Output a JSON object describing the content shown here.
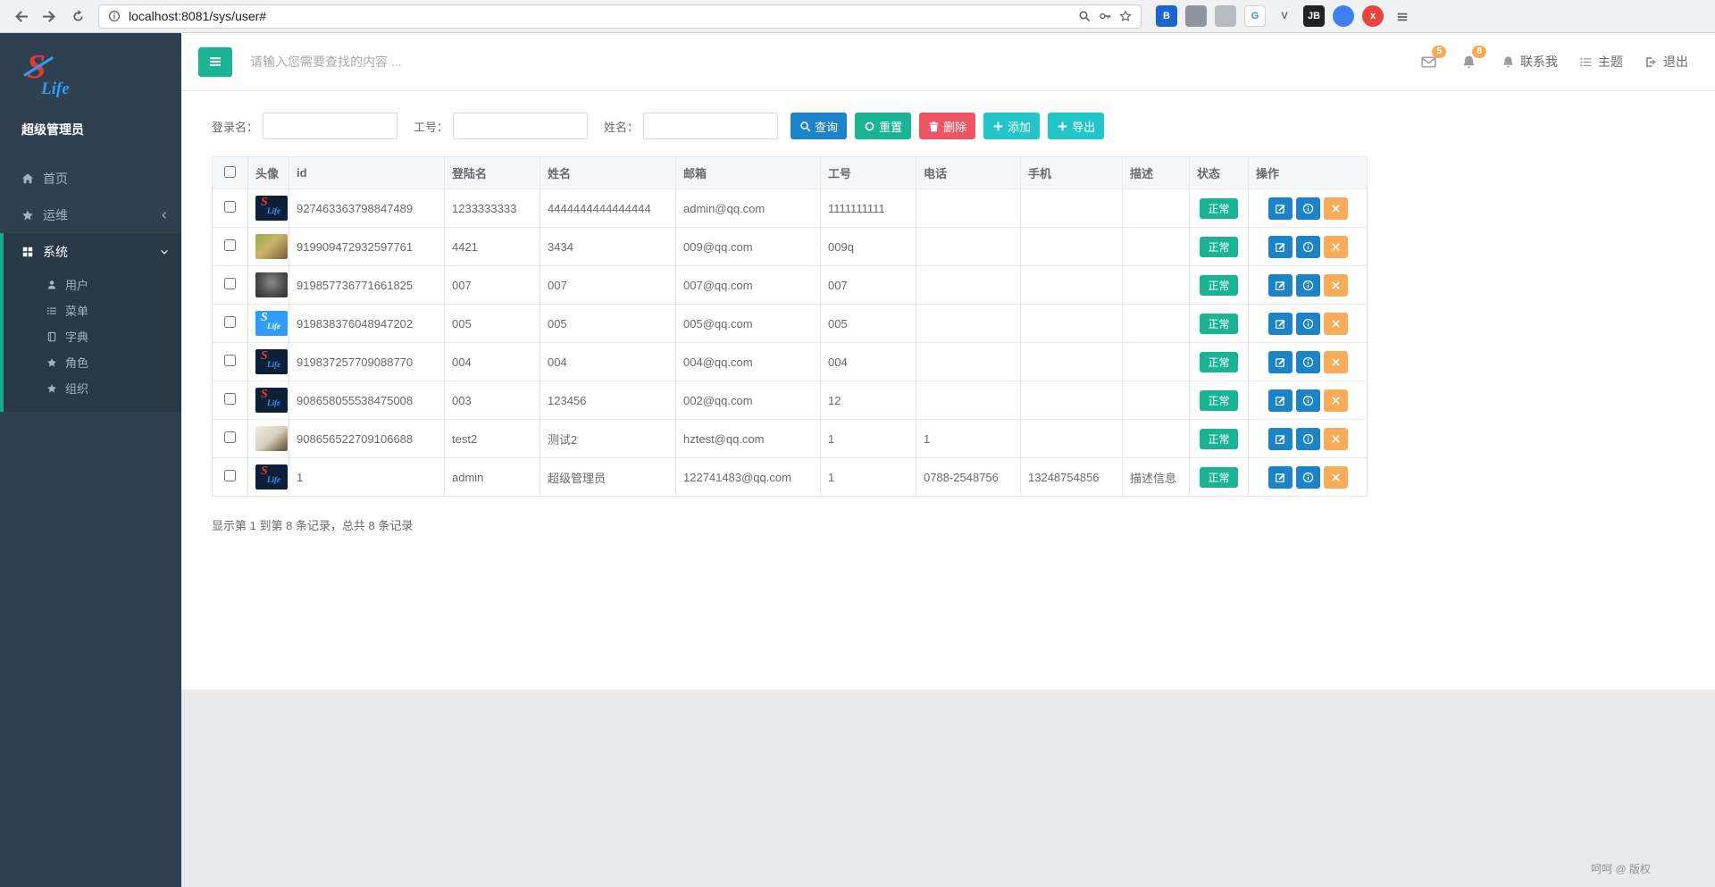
{
  "browser": {
    "url": "localhost:8081/sys/user#",
    "extensions": [
      {
        "key": "bitwarden",
        "label": "B",
        "bg": "#1c64d1",
        "fg": "#ffffff"
      },
      {
        "key": "gray-app",
        "label": "",
        "bg": "#8f959c",
        "fg": "#ffffff"
      },
      {
        "key": "grid",
        "label": "",
        "bg": "#b6bbc1",
        "fg": "#ffffff"
      },
      {
        "key": "translate",
        "label": "G",
        "bg": "#ffffff",
        "fg": "#4285f4",
        "border": true
      },
      {
        "key": "v",
        "label": "V",
        "bg": "#f0f1f3",
        "fg": "#5f6368"
      },
      {
        "key": "jetbrains",
        "label": "JB",
        "bg": "#202225",
        "fg": "#ffffff"
      },
      {
        "key": "blue-dot",
        "label": "",
        "bg": "#3d7ff5",
        "fg": "#ffffff",
        "round": true
      },
      {
        "key": "red-x",
        "label": "x",
        "bg": "#e8453c",
        "fg": "#ffffff",
        "round": true
      }
    ]
  },
  "sidebar": {
    "logo": {
      "s": "S",
      "life": "Life"
    },
    "role": "超级管理员",
    "items": [
      {
        "key": "home",
        "label": "首页",
        "icon": "home"
      },
      {
        "key": "ops",
        "label": "运维",
        "icon": "star",
        "chevron": "left"
      },
      {
        "key": "system",
        "label": "系统",
        "icon": "grid",
        "chevron": "down",
        "active": true
      }
    ],
    "subitems": [
      {
        "key": "user",
        "label": "用户",
        "icon": "user"
      },
      {
        "key": "menu",
        "label": "菜单",
        "icon": "list"
      },
      {
        "key": "dict",
        "label": "字典",
        "icon": "book"
      },
      {
        "key": "role",
        "label": "角色",
        "icon": "star"
      },
      {
        "key": "org",
        "label": "组织",
        "icon": "star"
      }
    ]
  },
  "topbar": {
    "search_placeholder": "请输入您需要查找的内容 ...",
    "messages_badge": "5",
    "alerts_badge": "8",
    "links": [
      {
        "key": "contact",
        "label": "联系我",
        "icon": "bell"
      },
      {
        "key": "theme",
        "label": "主题",
        "icon": "list"
      },
      {
        "key": "logout",
        "label": "退出",
        "icon": "signout"
      }
    ]
  },
  "filters": {
    "fields": [
      {
        "label": "登录名：",
        "value": ""
      },
      {
        "label": "工号：",
        "value": ""
      },
      {
        "label": "姓名：",
        "value": ""
      }
    ],
    "buttons": [
      {
        "key": "query",
        "label": "查询",
        "icon": "search",
        "color": "#1c84c6"
      },
      {
        "key": "reset",
        "label": "重置",
        "icon": "reset",
        "color": "#1ab394"
      },
      {
        "key": "delete",
        "label": "删除",
        "icon": "trash",
        "color": "#ed5565"
      },
      {
        "key": "add",
        "label": "添加",
        "icon": "plus",
        "color": "#23c6c8"
      },
      {
        "key": "export",
        "label": "导出",
        "icon": "plus",
        "color": "#23c6c8"
      }
    ]
  },
  "table": {
    "columns": [
      "头像",
      "id",
      "登陆名",
      "姓名",
      "邮箱",
      "工号",
      "电话",
      "手机",
      "描述",
      "状态",
      "操作"
    ],
    "rows": [
      {
        "avatar": "logo-dark",
        "id": "927463363798847489",
        "login": "1233333333",
        "name": "4444444444444444",
        "email": "admin@qq.com",
        "job_no": "1111111111",
        "phone": "",
        "mobile": "",
        "desc": "",
        "status": "正常"
      },
      {
        "avatar": "game",
        "id": "919909472932597761",
        "login": "4421",
        "name": "3434",
        "email": "009@qq.com",
        "job_no": "009q",
        "phone": "",
        "mobile": "",
        "desc": "",
        "status": "正常"
      },
      {
        "avatar": "cat-dark",
        "id": "919857736771661825",
        "login": "007",
        "name": "007",
        "email": "007@qq.com",
        "job_no": "007",
        "phone": "",
        "mobile": "",
        "desc": "",
        "status": "正常"
      },
      {
        "avatar": "logo-blue",
        "id": "919838376048947202",
        "login": "005",
        "name": "005",
        "email": "005@qq.com",
        "job_no": "005",
        "phone": "",
        "mobile": "",
        "desc": "",
        "status": "正常"
      },
      {
        "avatar": "logo-dark",
        "id": "919837257709088770",
        "login": "004",
        "name": "004",
        "email": "004@qq.com",
        "job_no": "004",
        "phone": "",
        "mobile": "",
        "desc": "",
        "status": "正常"
      },
      {
        "avatar": "logo-dark",
        "id": "908658055538475008",
        "login": "003",
        "name": "123456",
        "email": "002@qq.com",
        "job_no": "12",
        "phone": "",
        "mobile": "",
        "desc": "",
        "status": "正常"
      },
      {
        "avatar": "cat-light",
        "id": "908656522709106688",
        "login": "test2",
        "name": "测试2",
        "email": "hztest@qq.com",
        "job_no": "1",
        "phone": "1",
        "mobile": "",
        "desc": "",
        "status": "正常"
      },
      {
        "avatar": "logo-dark",
        "id": "1",
        "login": "admin",
        "name": "超级管理员",
        "email": "122741483@qq.com",
        "job_no": "1",
        "phone": "0788-2548756",
        "mobile": "13248754856",
        "desc": "描述信息",
        "status": "正常"
      }
    ],
    "summary": "显示第 1 到第 8 条记录，总共 8 条记录"
  },
  "footer": {
    "copyright": "呵呵 @ 版权"
  },
  "theme": {
    "sidebar_bg": "#2f4050",
    "sidebar_active_bg": "#293846",
    "sidebar_active_border": "#19aa8d",
    "primary_green": "#1ab394",
    "info_teal": "#23c6c8",
    "primary_blue": "#1c84c6",
    "danger_red": "#ed5565",
    "warning_orange": "#f8ac59"
  }
}
